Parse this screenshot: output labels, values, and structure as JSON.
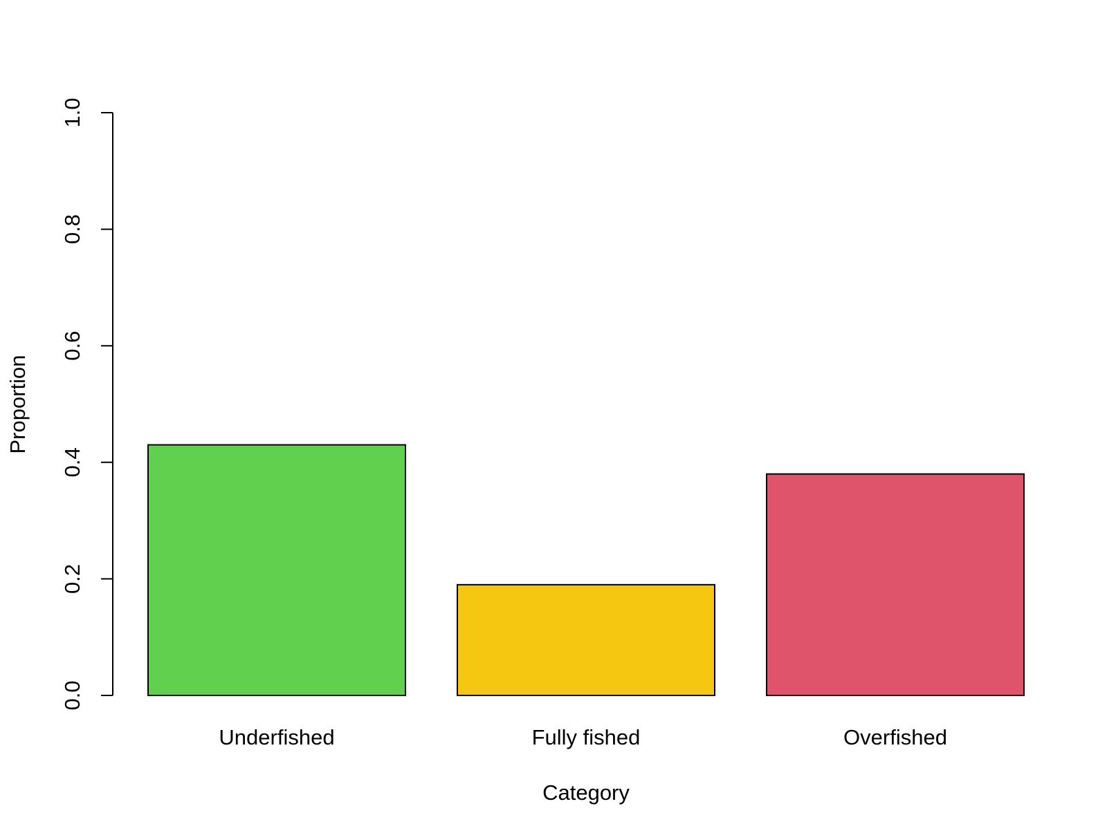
{
  "chart_data": {
    "type": "bar",
    "title": "",
    "xlabel": "Category",
    "ylabel": "Proportion",
    "categories": [
      "Underfished",
      "Fully fished",
      "Overfished"
    ],
    "values": [
      0.43,
      0.19,
      0.38
    ],
    "colors": [
      "#61D04F",
      "#F5C710",
      "#DF536B"
    ],
    "ylim": [
      0,
      1.0
    ],
    "yticks": [
      "0.0",
      "0.2",
      "0.4",
      "0.6",
      "0.8",
      "1.0"
    ],
    "grid": false,
    "legend": "none"
  }
}
